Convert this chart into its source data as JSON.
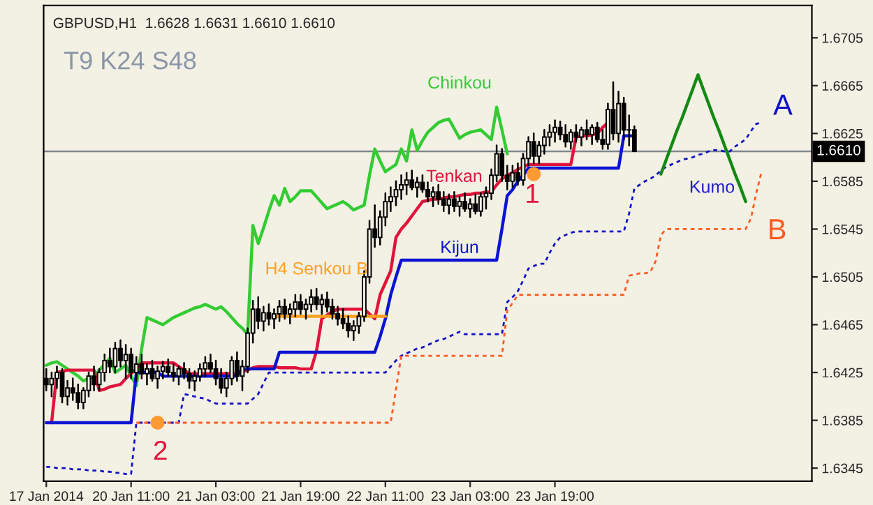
{
  "chart_data": {
    "type": "candlestick",
    "title": "GBPUSD,H1  1.6628 1.6631 1.6610 1.6610",
    "color": "#000000",
    "categories": [
      "17 Jan 2014",
      null,
      null,
      null,
      null,
      null,
      null,
      null,
      null,
      null,
      null,
      null,
      null,
      null,
      null,
      null,
      "20 Jan 11:00",
      null,
      null,
      null,
      null,
      null,
      null,
      null,
      null,
      null,
      null,
      null,
      null,
      null,
      null,
      null,
      "21 Jan 03:00",
      null,
      null,
      null,
      null,
      null,
      null,
      null,
      null,
      null,
      null,
      null,
      null,
      null,
      null,
      null,
      "21 Jan 19:00",
      null,
      null,
      null,
      null,
      null,
      null,
      null,
      null,
      null,
      null,
      null,
      null,
      null,
      null,
      null,
      "22 Jan 11:00",
      null,
      null,
      null,
      null,
      null,
      null,
      null,
      null,
      null,
      null,
      null,
      null,
      null,
      null,
      null,
      "23 Jan 03:00",
      null,
      null,
      null,
      null,
      null,
      null,
      null,
      null,
      null,
      null,
      null,
      null,
      null,
      null,
      null,
      "23 Jan 19:00",
      null,
      null,
      null,
      null,
      null,
      null,
      null,
      null,
      null,
      null,
      null,
      null,
      null,
      null,
      null,
      null,
      null,
      null,
      null,
      null,
      null,
      null,
      null,
      null,
      null,
      null,
      null,
      null,
      null,
      null,
      null,
      null,
      null,
      null,
      null,
      null,
      null,
      null,
      null,
      null
    ],
    "ohlc": [
      [
        1.642,
        1.6428,
        1.641,
        1.6415
      ],
      [
        1.6415,
        1.6425,
        1.6405,
        1.642
      ],
      [
        1.642,
        1.643,
        1.6412,
        1.6425
      ],
      [
        1.6425,
        1.6428,
        1.64,
        1.6405
      ],
      [
        1.6405,
        1.6418,
        1.6398,
        1.6412
      ],
      [
        1.6412,
        1.642,
        1.6402,
        1.6408
      ],
      [
        1.6408,
        1.6415,
        1.6395,
        1.64
      ],
      [
        1.64,
        1.6412,
        1.6395,
        1.641
      ],
      [
        1.641,
        1.6425,
        1.6405,
        1.6422
      ],
      [
        1.6422,
        1.643,
        1.641,
        1.6415
      ],
      [
        1.6415,
        1.6428,
        1.641,
        1.6425
      ],
      [
        1.6425,
        1.644,
        1.6418,
        1.6435
      ],
      [
        1.6435,
        1.6445,
        1.6425,
        1.643
      ],
      [
        1.643,
        1.645,
        1.6425,
        1.6445
      ],
      [
        1.6445,
        1.6452,
        1.643,
        1.6435
      ],
      [
        1.6435,
        1.6448,
        1.642,
        1.644
      ],
      [
        1.644,
        1.6445,
        1.642,
        1.6425
      ],
      [
        1.6425,
        1.6438,
        1.6418,
        1.6432
      ],
      [
        1.6432,
        1.644,
        1.642,
        1.6424
      ],
      [
        1.6424,
        1.6432,
        1.6415,
        1.6428
      ],
      [
        1.6428,
        1.6435,
        1.6418,
        1.642
      ],
      [
        1.642,
        1.643,
        1.6412,
        1.6426
      ],
      [
        1.6426,
        1.6434,
        1.642,
        1.643
      ],
      [
        1.643,
        1.6436,
        1.6422,
        1.6425
      ],
      [
        1.6425,
        1.6432,
        1.6418,
        1.6422
      ],
      [
        1.6422,
        1.643,
        1.6415,
        1.6428
      ],
      [
        1.6428,
        1.6433,
        1.642,
        1.6424
      ],
      [
        1.6424,
        1.6428,
        1.6412,
        1.6418
      ],
      [
        1.6418,
        1.6426,
        1.641,
        1.6422
      ],
      [
        1.6422,
        1.6432,
        1.6418,
        1.6428
      ],
      [
        1.6428,
        1.6438,
        1.6422,
        1.6433
      ],
      [
        1.6433,
        1.644,
        1.6425,
        1.6428
      ],
      [
        1.6428,
        1.6435,
        1.6415,
        1.642
      ],
      [
        1.642,
        1.6428,
        1.6408,
        1.6412
      ],
      [
        1.6412,
        1.6425,
        1.6405,
        1.642
      ],
      [
        1.642,
        1.6438,
        1.6415,
        1.6435
      ],
      [
        1.6435,
        1.6442,
        1.6418,
        1.6422
      ],
      [
        1.6422,
        1.6435,
        1.641,
        1.643
      ],
      [
        1.643,
        1.6462,
        1.6425,
        1.6458
      ],
      [
        1.6458,
        1.6485,
        1.645,
        1.6478
      ],
      [
        1.6478,
        1.6488,
        1.6462,
        1.6468
      ],
      [
        1.6468,
        1.648,
        1.646,
        1.6475
      ],
      [
        1.6475,
        1.6482,
        1.6465,
        1.647
      ],
      [
        1.647,
        1.6478,
        1.6462,
        1.6474
      ],
      [
        1.6474,
        1.6485,
        1.6468,
        1.648
      ],
      [
        1.648,
        1.6486,
        1.647,
        1.6474
      ],
      [
        1.6474,
        1.6482,
        1.6466,
        1.6478
      ],
      [
        1.6478,
        1.649,
        1.6472,
        1.6484
      ],
      [
        1.6484,
        1.649,
        1.6474,
        1.6478
      ],
      [
        1.6478,
        1.6486,
        1.647,
        1.6482
      ],
      [
        1.6482,
        1.6494,
        1.6476,
        1.6488
      ],
      [
        1.6488,
        1.6495,
        1.6478,
        1.6482
      ],
      [
        1.6482,
        1.649,
        1.6474,
        1.6486
      ],
      [
        1.6486,
        1.6492,
        1.6476,
        1.648
      ],
      [
        1.648,
        1.6486,
        1.647,
        1.6474
      ],
      [
        1.6474,
        1.648,
        1.6465,
        1.647
      ],
      [
        1.647,
        1.6478,
        1.6462,
        1.6466
      ],
      [
        1.6466,
        1.6472,
        1.6455,
        1.646
      ],
      [
        1.646,
        1.6468,
        1.6452,
        1.6464
      ],
      [
        1.6464,
        1.6475,
        1.6458,
        1.6472
      ],
      [
        1.6472,
        1.651,
        1.6468,
        1.6505
      ],
      [
        1.6505,
        1.6552,
        1.65,
        1.6545
      ],
      [
        1.6545,
        1.6565,
        1.653,
        1.6538
      ],
      [
        1.6538,
        1.656,
        1.6532,
        1.6555
      ],
      [
        1.6555,
        1.6575,
        1.6548,
        1.6568
      ],
      [
        1.6568,
        1.658,
        1.656,
        1.6572
      ],
      [
        1.6572,
        1.6585,
        1.6565,
        1.6578
      ],
      [
        1.6578,
        1.659,
        1.657,
        1.6582
      ],
      [
        1.6582,
        1.6592,
        1.6574,
        1.6586
      ],
      [
        1.6586,
        1.6594,
        1.6578,
        1.658
      ],
      [
        1.658,
        1.6588,
        1.6572,
        1.6584
      ],
      [
        1.6584,
        1.659,
        1.6576,
        1.6578
      ],
      [
        1.6578,
        1.6584,
        1.6568,
        1.6572
      ],
      [
        1.6572,
        1.658,
        1.6564,
        1.6576
      ],
      [
        1.6576,
        1.6582,
        1.6566,
        1.657
      ],
      [
        1.657,
        1.6576,
        1.656,
        1.6565
      ],
      [
        1.6565,
        1.6574,
        1.6558,
        1.657
      ],
      [
        1.657,
        1.6576,
        1.656,
        1.6564
      ],
      [
        1.6564,
        1.6572,
        1.6556,
        1.6568
      ],
      [
        1.6568,
        1.6575,
        1.656,
        1.6562
      ],
      [
        1.6562,
        1.657,
        1.6555,
        1.6566
      ],
      [
        1.6566,
        1.6574,
        1.6558,
        1.656
      ],
      [
        1.656,
        1.6575,
        1.6556,
        1.6572
      ],
      [
        1.6572,
        1.658,
        1.6562,
        1.6575
      ],
      [
        1.6575,
        1.6595,
        1.657,
        1.659
      ],
      [
        1.659,
        1.6615,
        1.6585,
        1.6608
      ],
      [
        1.6608,
        1.6612,
        1.6585,
        1.659
      ],
      [
        1.659,
        1.6598,
        1.6578,
        1.6585
      ],
      [
        1.6585,
        1.6598,
        1.658,
        1.6592
      ],
      [
        1.6592,
        1.66,
        1.6582,
        1.6586
      ],
      [
        1.6586,
        1.6608,
        1.6582,
        1.6604
      ],
      [
        1.6604,
        1.6622,
        1.6598,
        1.6618
      ],
      [
        1.6618,
        1.6625,
        1.66,
        1.6606
      ],
      [
        1.6606,
        1.6618,
        1.66,
        1.6615
      ],
      [
        1.6615,
        1.6628,
        1.6608,
        1.6622
      ],
      [
        1.6622,
        1.6632,
        1.6615,
        1.6626
      ],
      [
        1.6626,
        1.6636,
        1.6618,
        1.663
      ],
      [
        1.663,
        1.6635,
        1.662,
        1.6624
      ],
      [
        1.6624,
        1.6632,
        1.6614,
        1.6618
      ],
      [
        1.6618,
        1.6628,
        1.6612,
        1.6626
      ],
      [
        1.6626,
        1.6632,
        1.6618,
        1.6622
      ],
      [
        1.6622,
        1.663,
        1.6615,
        1.6628
      ],
      [
        1.6628,
        1.6636,
        1.662,
        1.6624
      ],
      [
        1.6624,
        1.6632,
        1.6616,
        1.663
      ],
      [
        1.663,
        1.6634,
        1.6618,
        1.662
      ],
      [
        1.662,
        1.6628,
        1.6612,
        1.6616
      ],
      [
        1.6616,
        1.665,
        1.6612,
        1.6645
      ],
      [
        1.6645,
        1.6668,
        1.662,
        1.6625
      ],
      [
        1.6625,
        1.666,
        1.6618,
        1.665
      ],
      [
        1.665,
        1.6655,
        1.662,
        1.6628
      ],
      [
        1.6628,
        1.664,
        1.6615,
        1.6628
      ],
      [
        1.6628,
        1.6631,
        1.661,
        1.661
      ],
      null,
      null,
      null,
      null,
      null,
      null,
      null,
      null,
      null,
      null,
      null,
      null,
      null,
      null,
      null,
      null,
      null,
      null,
      null,
      null,
      null,
      null,
      null,
      null,
      null
    ],
    "series": [
      {
        "type": "line",
        "name": "A",
        "color": "#1010c8",
        "line_style": "dashed",
        "values": [
          1.6346,
          1.6346,
          1.6345,
          1.6345,
          1.6345,
          1.6344,
          1.6344,
          1.6344,
          1.6343,
          1.6343,
          1.6343,
          1.6342,
          1.6342,
          1.6341,
          1.6341,
          1.634,
          1.634,
          1.6383,
          1.6383,
          1.6383,
          1.6383,
          1.6383,
          1.6383,
          1.6383,
          1.6383,
          1.6383,
          1.6407,
          1.6406,
          1.6405,
          1.6404,
          1.6403,
          1.6401,
          1.6399,
          1.6399,
          1.6399,
          1.6399,
          1.6399,
          1.6399,
          1.6399,
          1.6403,
          1.6407,
          1.6416,
          1.6425,
          1.6425,
          1.6425,
          1.6425,
          1.6425,
          1.6425,
          1.6425,
          1.6425,
          1.6425,
          1.6425,
          1.6425,
          1.6425,
          1.6425,
          1.6425,
          1.6425,
          1.6425,
          1.6425,
          1.6425,
          1.6425,
          1.6425,
          1.6425,
          1.6425,
          1.6425,
          1.643,
          1.6435,
          1.6439,
          1.6441,
          1.6443,
          1.6445,
          1.6446,
          1.6448,
          1.645,
          1.6452,
          1.6453,
          1.6455,
          1.6457,
          1.6459,
          1.6457,
          1.6457,
          1.6457,
          1.6457,
          1.6457,
          1.6457,
          1.6457,
          1.6457,
          1.6484,
          1.6488,
          1.6493,
          1.6502,
          1.6512,
          1.6514,
          1.6516,
          1.6516,
          1.6525,
          1.6533,
          1.6538,
          1.654,
          1.6542,
          1.6543,
          1.6543,
          1.6543,
          1.6543,
          1.6543,
          1.6543,
          1.6543,
          1.6543,
          1.6543,
          1.6543,
          1.6558,
          1.6579,
          1.6582,
          1.6585,
          1.6587,
          1.659,
          1.6594,
          1.6597,
          1.6599,
          1.6601,
          1.6603,
          1.6604,
          1.6605,
          1.6607,
          1.6608,
          1.661,
          1.6611,
          1.6611,
          1.661,
          1.661,
          1.6614,
          1.6617,
          1.662,
          1.6627,
          1.6633,
          1.6634,
          null
        ]
      },
      {
        "type": "line",
        "name": "B",
        "color": "#ff5a1e",
        "line_style": "dashed",
        "values": [
          null,
          null,
          null,
          null,
          null,
          null,
          null,
          null,
          null,
          null,
          null,
          null,
          null,
          null,
          null,
          null,
          null,
          1.6383,
          1.6383,
          1.6383,
          1.6383,
          1.6383,
          1.6383,
          1.6383,
          1.6383,
          1.6383,
          1.6383,
          1.6383,
          1.6383,
          1.6383,
          1.6383,
          1.6383,
          1.6383,
          1.6383,
          1.6383,
          1.6383,
          1.6383,
          1.6383,
          1.6383,
          1.6383,
          1.6383,
          1.6383,
          1.6383,
          1.6383,
          1.6383,
          1.6383,
          1.6383,
          1.6383,
          1.6383,
          1.6383,
          1.6383,
          1.6383,
          1.6383,
          1.6383,
          1.6383,
          1.6383,
          1.6383,
          1.6383,
          1.6383,
          1.6383,
          1.6383,
          1.6383,
          1.6383,
          1.6383,
          1.6383,
          1.6383,
          1.6411,
          1.6439,
          1.6439,
          1.6439,
          1.6439,
          1.6439,
          1.6439,
          1.6439,
          1.6439,
          1.6439,
          1.6439,
          1.6439,
          1.6439,
          1.6439,
          1.6439,
          1.6439,
          1.6439,
          1.6439,
          1.6439,
          1.6439,
          1.6439,
          1.6477,
          1.6483,
          1.649,
          1.649,
          1.649,
          1.649,
          1.649,
          1.649,
          1.649,
          1.649,
          1.649,
          1.649,
          1.649,
          1.649,
          1.649,
          1.649,
          1.649,
          1.649,
          1.649,
          1.649,
          1.649,
          1.649,
          1.649,
          1.6506,
          1.6507,
          1.6508,
          1.6508,
          1.6509,
          1.6518,
          1.654,
          1.6545,
          1.6545,
          1.6545,
          1.6545,
          1.6545,
          1.6545,
          1.6545,
          1.6545,
          1.6545,
          1.6545,
          1.6545,
          1.6545,
          1.6545,
          1.6545,
          1.6545,
          1.6545,
          1.6554,
          1.6575,
          1.6593,
          null
        ]
      },
      {
        "type": "line",
        "name": "Chinkou",
        "color": "#33cc33",
        "values": [
          1.6431,
          1.6433,
          1.6434,
          1.6431,
          1.6428,
          1.6425,
          1.6422,
          1.6418,
          1.642,
          1.6422,
          1.6427,
          1.6432,
          1.6437,
          1.6425,
          1.6428,
          1.6431,
          1.6422,
          1.6414,
          1.6445,
          1.6471,
          1.6469,
          1.6467,
          1.6465,
          1.6468,
          1.6471,
          1.6473,
          1.6475,
          1.6477,
          1.6479,
          1.648,
          1.6482,
          1.648,
          1.6478,
          1.648,
          1.6476,
          1.6471,
          1.6466,
          1.6462,
          1.6457,
          1.6548,
          1.6533,
          1.6546,
          1.656,
          1.6573,
          1.6565,
          1.6579,
          1.6568,
          1.6572,
          1.6577,
          1.6577,
          1.6577,
          1.6572,
          1.6567,
          1.6562,
          1.6564,
          1.6566,
          1.6568,
          1.6565,
          1.6561,
          1.6563,
          1.6565,
          1.659,
          1.6612,
          1.6602,
          1.6593,
          1.6596,
          1.6599,
          1.6612,
          1.6602,
          1.6628,
          1.6611,
          1.6619,
          1.6626,
          1.663,
          1.6634,
          1.6636,
          1.6637,
          1.6629,
          1.6621,
          1.6624,
          1.6626,
          1.6627,
          1.6628,
          1.6624,
          1.662,
          1.6647,
          1.6628,
          1.6608,
          null,
          null,
          null,
          null,
          null,
          null,
          null,
          null,
          null,
          null,
          null,
          null,
          null,
          null,
          null,
          null,
          null,
          null,
          null,
          null,
          null,
          null,
          null,
          null,
          null,
          null,
          null,
          null,
          null,
          null,
          null,
          null,
          null,
          null,
          null,
          null,
          null,
          null,
          null,
          null,
          null,
          null,
          null,
          null,
          null,
          null,
          null,
          null,
          null
        ]
      },
      {
        "type": "line",
        "name": "Tenkan",
        "color": "#e0143c",
        "values": [
          null,
          1.6383,
          1.6425,
          1.6426,
          1.6427,
          1.6427,
          1.6427,
          1.6427,
          1.6427,
          1.6427,
          1.641,
          1.6411,
          1.6413,
          1.6414,
          1.6415,
          1.642,
          1.6424,
          1.6428,
          1.6433,
          1.6433,
          1.6433,
          1.6433,
          1.6433,
          1.6433,
          1.6433,
          1.643,
          1.6427,
          1.6424,
          1.6424,
          1.6424,
          1.6424,
          1.6424,
          1.6424,
          1.6424,
          1.6424,
          1.6424,
          1.6424,
          1.6426,
          1.6427,
          1.6429,
          1.643,
          1.643,
          1.643,
          1.643,
          1.6429,
          1.6429,
          1.6429,
          1.6429,
          1.6428,
          1.6428,
          1.6428,
          1.6443,
          1.647,
          1.6473,
          1.6476,
          1.6478,
          1.6478,
          1.6478,
          1.6478,
          1.6478,
          1.6478,
          1.6474,
          1.647,
          1.649,
          1.65,
          1.651,
          1.6538,
          1.6545,
          1.655,
          1.6556,
          1.6562,
          1.6568,
          1.6569,
          1.657,
          1.657,
          1.6571,
          1.6572,
          1.6572,
          1.6573,
          1.6574,
          1.6574,
          1.6575,
          1.6575,
          1.6576,
          1.6576,
          1.6582,
          1.6587,
          1.659,
          1.6592,
          1.6595,
          1.6597,
          1.6599,
          1.6599,
          1.6599,
          1.6599,
          1.6599,
          1.6599,
          1.6599,
          1.6599,
          1.6599,
          1.6622,
          1.6623,
          1.6623,
          1.6624,
          1.6625,
          1.663,
          1.6634,
          null,
          null,
          null,
          null,
          null,
          null,
          null,
          null,
          null,
          null,
          null,
          null,
          null,
          null,
          null,
          null,
          null,
          null,
          null,
          null,
          null,
          null,
          null,
          null,
          null,
          null,
          null,
          null,
          null,
          null
        ]
      },
      {
        "type": "line",
        "name": "Kijun",
        "color": "#0a14d2",
        "values": [
          1.6383,
          1.6383,
          1.6383,
          1.6383,
          1.6383,
          1.6383,
          1.6383,
          1.6383,
          1.6383,
          1.6383,
          1.6383,
          1.6383,
          1.6383,
          1.6383,
          1.6383,
          1.6383,
          1.6383,
          1.6425,
          1.6425,
          1.6425,
          1.6425,
          1.6425,
          1.6422,
          1.6422,
          1.6422,
          1.6422,
          1.6422,
          1.6422,
          1.6422,
          1.6422,
          1.6422,
          1.6422,
          1.6422,
          1.6422,
          1.6422,
          1.6422,
          1.6422,
          1.6428,
          1.6428,
          1.6428,
          1.6428,
          1.6428,
          1.6428,
          1.6428,
          1.6442,
          1.6442,
          1.6442,
          1.6442,
          1.6442,
          1.6442,
          1.6442,
          1.6442,
          1.6442,
          1.6442,
          1.6442,
          1.6442,
          1.6442,
          1.6442,
          1.6442,
          1.6442,
          1.6442,
          1.6442,
          1.6442,
          1.6455,
          1.647,
          1.649,
          1.6505,
          1.6519,
          1.6519,
          1.6519,
          1.6519,
          1.6519,
          1.6519,
          1.6519,
          1.6519,
          1.6519,
          1.6519,
          1.6519,
          1.6519,
          1.6519,
          1.6519,
          1.6519,
          1.6519,
          1.6519,
          1.6519,
          1.6519,
          1.6545,
          1.6573,
          1.6578,
          1.6585,
          1.659,
          1.6596,
          1.6596,
          1.6596,
          1.6596,
          1.6596,
          1.6596,
          1.6596,
          1.6596,
          1.6596,
          1.6596,
          1.6596,
          1.6596,
          1.6596,
          1.6596,
          1.6596,
          1.6596,
          1.6596,
          1.6596,
          1.6623,
          1.6623,
          1.6623,
          null,
          null,
          null,
          null,
          null,
          null,
          null,
          null,
          null,
          null,
          null,
          null,
          null,
          null,
          null,
          null,
          null,
          null,
          null,
          null,
          null,
          null,
          null,
          null,
          null
        ]
      },
      {
        "type": "line",
        "name": "H4 Senkou B",
        "color": "#ffa020",
        "values": [
          null,
          null,
          null,
          null,
          null,
          null,
          null,
          null,
          null,
          null,
          null,
          null,
          null,
          null,
          null,
          null,
          null,
          null,
          null,
          null,
          null,
          null,
          null,
          null,
          null,
          null,
          null,
          null,
          null,
          null,
          null,
          null,
          null,
          null,
          null,
          null,
          null,
          null,
          null,
          null,
          null,
          null,
          1.6472,
          1.6472,
          1.6472,
          1.6472,
          1.6472,
          1.6472,
          1.6472,
          1.6472,
          1.6472,
          1.6472,
          1.6472,
          1.6472,
          1.6472,
          1.6472,
          1.6472,
          1.6472,
          1.6472,
          1.6472,
          1.6472,
          1.6472,
          1.6472,
          1.6472,
          1.6472,
          null,
          null,
          null,
          null,
          null,
          null,
          null,
          null,
          null,
          null,
          null,
          null,
          null,
          null,
          null,
          null,
          null,
          null,
          null,
          null,
          null,
          null,
          null,
          null,
          null,
          null,
          null,
          null,
          null,
          null,
          null,
          null,
          null,
          null,
          null,
          null,
          null,
          null,
          null,
          null,
          null,
          null,
          null,
          null,
          null,
          null,
          null,
          null,
          null,
          null,
          null,
          null,
          null,
          null,
          null,
          null,
          null,
          null,
          null,
          null,
          null,
          null,
          null,
          null,
          null,
          null,
          null,
          null,
          null,
          null,
          null,
          null
        ]
      },
      {
        "type": "line",
        "color": "#138a13",
        "values": [
          null,
          null,
          null,
          null,
          null,
          null,
          null,
          null,
          null,
          null,
          null,
          null,
          null,
          null,
          null,
          null,
          null,
          null,
          null,
          null,
          null,
          null,
          null,
          null,
          null,
          null,
          null,
          null,
          null,
          null,
          null,
          null,
          null,
          null,
          null,
          null,
          null,
          null,
          null,
          null,
          null,
          null,
          null,
          null,
          null,
          null,
          null,
          null,
          null,
          null,
          null,
          null,
          null,
          null,
          null,
          null,
          null,
          null,
          null,
          null,
          null,
          null,
          null,
          null,
          null,
          null,
          null,
          null,
          null,
          null,
          null,
          null,
          null,
          null,
          null,
          null,
          null,
          null,
          null,
          null,
          null,
          null,
          null,
          null,
          null,
          null,
          null,
          null,
          null,
          null,
          null,
          null,
          null,
          null,
          null,
          null,
          null,
          null,
          null,
          null,
          null,
          null,
          null,
          null,
          null,
          null,
          null,
          null,
          null,
          null,
          null,
          null,
          null,
          null,
          null,
          null,
          1.6591,
          1.6603,
          1.6615,
          1.6627,
          1.6638,
          1.665,
          1.6662,
          1.6674,
          1.6662,
          1.665,
          1.6638,
          1.6627,
          1.6615,
          1.6603,
          1.6591,
          1.658,
          1.6568,
          null,
          null,
          null,
          null
        ]
      },
      {
        "type": "scatter",
        "color": "#ff9933",
        "marker": "circle",
        "values": [
          null,
          null,
          null,
          null,
          null,
          null,
          null,
          null,
          null,
          null,
          null,
          null,
          null,
          null,
          null,
          null,
          null,
          null,
          null,
          null,
          null,
          1.6383,
          null,
          null,
          null,
          null,
          null,
          null,
          null,
          null,
          null,
          null,
          null,
          null,
          null,
          null,
          null,
          null,
          null,
          null,
          null,
          null,
          null,
          null,
          null,
          null,
          null,
          null,
          null,
          null,
          null,
          null,
          null,
          null,
          null,
          null,
          null,
          null,
          null,
          null,
          null,
          null,
          null,
          null,
          null,
          null,
          null,
          null,
          null,
          null,
          null,
          null,
          null,
          null,
          null,
          null,
          null,
          null,
          null,
          null,
          null,
          null,
          null,
          null,
          null,
          null,
          null,
          null,
          null,
          null,
          null,
          null,
          1.6591,
          null,
          null,
          null,
          null,
          null,
          null,
          null,
          null,
          null,
          null,
          null,
          null,
          null,
          null,
          null,
          null,
          null,
          null,
          null,
          null,
          null,
          null,
          null,
          null,
          null,
          null,
          null,
          null,
          null,
          null,
          null,
          null,
          null,
          null,
          null,
          null,
          null,
          null,
          null,
          null,
          null,
          null,
          null,
          null
        ]
      }
    ],
    "annotations": [
      "T9 K24 S48",
      "Kumo",
      "1",
      "2"
    ],
    "ref_lines": [
      {
        "axis": "y",
        "value": 1.661,
        "label": "1.6610",
        "color": "#808890"
      }
    ],
    "ylim": [
      1.6334,
      1.6732
    ],
    "yticks": [
      1.6345,
      1.6385,
      1.6425,
      1.6465,
      1.6505,
      1.6545,
      1.6585,
      1.6625,
      1.6665,
      1.6705
    ],
    "grid": false,
    "legend": false,
    "marker": "none"
  }
}
